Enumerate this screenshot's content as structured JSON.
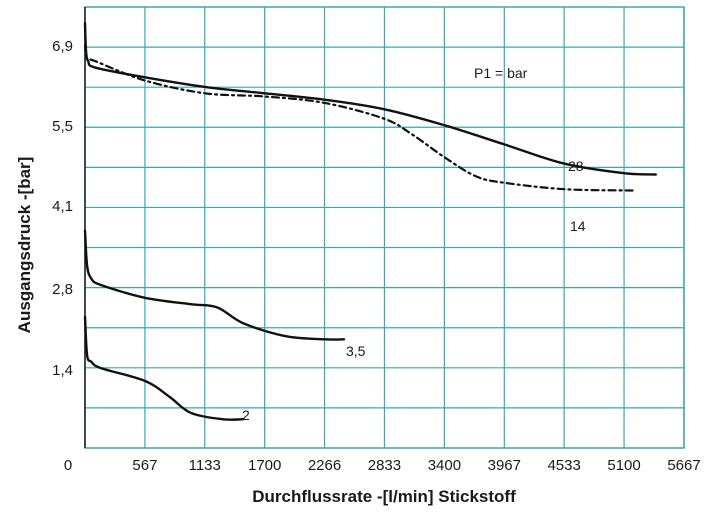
{
  "chart_data": {
    "type": "line",
    "title": "",
    "xlabel": "Durchflussrate -[l/min] Stickstoff",
    "ylabel": "Ausgangsdruck -[bar]",
    "xlim": [
      0,
      5667
    ],
    "ylim": [
      0,
      6.9
    ],
    "x_ticks": [
      "0",
      "567",
      "1133",
      "1700",
      "2266",
      "2833",
      "3400",
      "3967",
      "4533",
      "5100",
      "5667"
    ],
    "y_ticks": [
      "1,4",
      "2,8",
      "4,1",
      "5,5",
      "6,9"
    ],
    "grid": true,
    "annotation": "P1 = bar",
    "colors": {
      "grid": "#3aa6b0",
      "line": "#111111",
      "text": "#1a1a1a"
    },
    "series": [
      {
        "name": "28",
        "style": "solid",
        "x": [
          0,
          10,
          30,
          100,
          567,
          1133,
          1700,
          2266,
          2833,
          3400,
          3967,
          4533,
          5100,
          5400
        ],
        "y": [
          6.65,
          6.2,
          6.05,
          5.95,
          5.8,
          5.65,
          5.55,
          5.45,
          5.3,
          5.05,
          4.75,
          4.45,
          4.3,
          4.28
        ]
      },
      {
        "name": "14",
        "style": "dashed",
        "x": [
          0,
          20,
          100,
          567,
          1133,
          1700,
          2266,
          2833,
          3100,
          3400,
          3700,
          3967,
          4533,
          5100,
          5200
        ],
        "y": [
          6.3,
          6.1,
          6.05,
          5.75,
          5.55,
          5.5,
          5.4,
          5.15,
          4.9,
          4.55,
          4.25,
          4.15,
          4.05,
          4.03,
          4.03
        ]
      },
      {
        "name": "3,5",
        "style": "solid",
        "x": [
          0,
          20,
          60,
          150,
          567,
          1000,
          1250,
          1500,
          1900,
          2266,
          2450
        ],
        "y": [
          3.4,
          2.85,
          2.65,
          2.55,
          2.35,
          2.25,
          2.2,
          1.95,
          1.75,
          1.7,
          1.7
        ]
      },
      {
        "name": "2",
        "style": "solid",
        "x": [
          0,
          20,
          60,
          150,
          567,
          800,
          1000,
          1300,
          1500
        ],
        "y": [
          2.05,
          1.45,
          1.35,
          1.25,
          1.05,
          0.8,
          0.55,
          0.45,
          0.45
        ]
      }
    ]
  }
}
